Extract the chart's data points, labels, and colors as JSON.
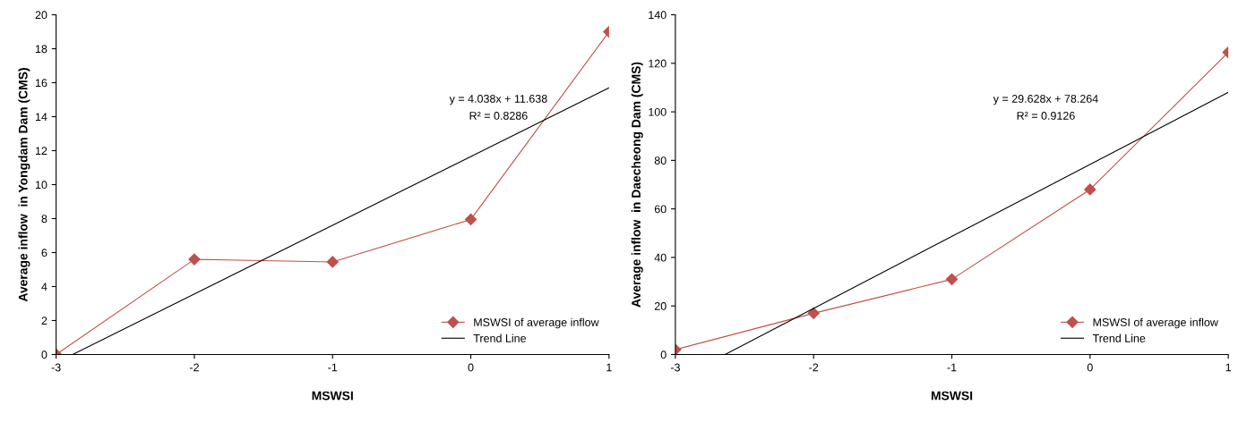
{
  "chart_data": [
    {
      "type": "line",
      "xlabel": "MSWSI",
      "ylabel": "Average inflow  in Yongdam Dam (CMS)",
      "x": [
        -3,
        -2,
        -1,
        0,
        1
      ],
      "xlim": [
        -3,
        1
      ],
      "xticks": [
        -3,
        -2,
        -1,
        0,
        1
      ],
      "ylim": [
        0,
        20
      ],
      "yticks": [
        0,
        2,
        4,
        6,
        8,
        10,
        12,
        14,
        16,
        18,
        20
      ],
      "grid": false,
      "legend": "bottom right",
      "series": [
        {
          "name": "MSWSI of average inflow",
          "color": "#c0504d",
          "values": [
            0,
            5.6,
            5.45,
            7.95,
            19
          ],
          "marker": "diamond"
        },
        {
          "name": "Trend Line",
          "color": "#000000",
          "x": [
            -2.88,
            1
          ],
          "values": [
            0,
            15.7
          ],
          "marker": "none"
        }
      ],
      "annotations": [
        "y = 4.038x + 11.638",
        "R² = 0.8286"
      ]
    },
    {
      "type": "line",
      "xlabel": "MSWSI",
      "ylabel": "Average inflow  in Daecheong Dam (CMS)",
      "x": [
        -3,
        -2,
        -1,
        0,
        1
      ],
      "xlim": [
        -3,
        1
      ],
      "xticks": [
        -3,
        -2,
        -1,
        0,
        1
      ],
      "ylim": [
        0,
        140
      ],
      "yticks": [
        0,
        20,
        40,
        60,
        80,
        100,
        120,
        140
      ],
      "grid": false,
      "legend": "bottom right",
      "series": [
        {
          "name": "MSWSI of average inflow",
          "color": "#c0504d",
          "values": [
            2,
            17,
            31,
            68,
            124.5
          ],
          "marker": "diamond"
        },
        {
          "name": "Trend Line",
          "color": "#000000",
          "x": [
            -2.64,
            1
          ],
          "values": [
            0,
            108
          ],
          "marker": "none"
        }
      ],
      "annotations": [
        "y = 29.628x + 78.264",
        "R² = 0.9126"
      ]
    }
  ]
}
